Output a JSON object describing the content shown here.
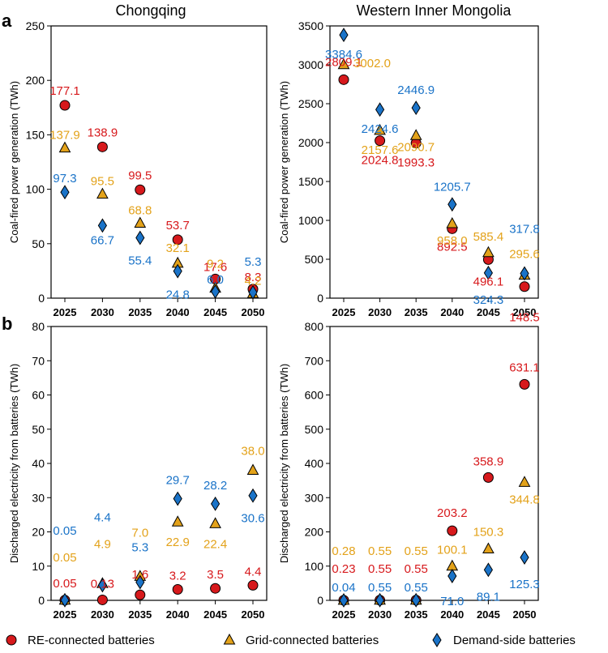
{
  "figure": {
    "panel_a": "a",
    "panel_b": "b",
    "col_titles": [
      "Chongqing",
      "Western Inner Mongolia"
    ]
  },
  "colors": {
    "re": "#d7191c",
    "grid": "#e3a21a",
    "demand": "#1a73c8",
    "red_label": "#d7191c",
    "gold_label": "#e3a21a",
    "blue_label": "#1a73c8"
  },
  "legend": {
    "items": [
      {
        "label": "RE-connected batteries",
        "marker": "circle",
        "color": "#d7191c"
      },
      {
        "label": "Grid-connected batteries",
        "marker": "triangle",
        "color": "#e3a21a"
      },
      {
        "label": "Demand-side batteries",
        "marker": "diamond",
        "color": "#1a73c8"
      }
    ]
  },
  "chart_data": [
    {
      "type": "scatter",
      "id": "a-chongqing",
      "title": "Chongqing",
      "xlabel": "",
      "ylabel": "Coal-fired power generation (TWh)",
      "categories": [
        "2025",
        "2030",
        "2035",
        "2040",
        "2045",
        "2050"
      ],
      "ylim": [
        0,
        250
      ],
      "yticks": [
        0,
        50,
        100,
        150,
        200,
        250
      ],
      "series": [
        {
          "name": "RE-connected batteries",
          "marker": "circle",
          "values": [
            177.1,
            138.9,
            99.5,
            53.7,
            17.6,
            8.3
          ]
        },
        {
          "name": "Grid-connected batteries",
          "marker": "triangle",
          "values": [
            137.9,
            95.5,
            68.8,
            32.1,
            9.2,
            4.2
          ]
        },
        {
          "name": "Demand-side batteries",
          "marker": "diamond",
          "values": [
            97.3,
            66.7,
            55.4,
            24.8,
            6.0,
            5.3
          ]
        }
      ]
    },
    {
      "type": "scatter",
      "id": "a-mongolia",
      "title": "Western Inner Mongolia",
      "xlabel": "",
      "ylabel": "Coal-fired power generation (TWh)",
      "categories": [
        "2025",
        "2030",
        "2035",
        "2040",
        "2045",
        "2050"
      ],
      "ylim": [
        0,
        3500
      ],
      "yticks": [
        0,
        500,
        1000,
        1500,
        2000,
        2500,
        3000,
        3500
      ],
      "series": [
        {
          "name": "RE-connected batteries",
          "marker": "circle",
          "values": [
            2809.1,
            2024.8,
            1993.3,
            892.5,
            496.1,
            148.5
          ]
        },
        {
          "name": "Grid-connected batteries",
          "marker": "triangle",
          "values": [
            3002.0,
            2157.6,
            2090.7,
            958.0,
            585.4,
            295.6
          ]
        },
        {
          "name": "Demand-side batteries",
          "marker": "diamond",
          "values": [
            3384.6,
            2424.6,
            2446.9,
            1205.7,
            324.3,
            317.8
          ]
        }
      ]
    },
    {
      "type": "scatter",
      "id": "b-chongqing",
      "title": "",
      "xlabel": "",
      "ylabel": "Discharged electricity from batteries (TWh)",
      "categories": [
        "2025",
        "2030",
        "2035",
        "2040",
        "2045",
        "2050"
      ],
      "ylim": [
        0,
        80
      ],
      "yticks": [
        0,
        10,
        20,
        30,
        40,
        50,
        60,
        70,
        80
      ],
      "series": [
        {
          "name": "RE-connected batteries",
          "marker": "circle",
          "values": [
            0.05,
            0.13,
            1.6,
            3.2,
            3.5,
            4.4
          ]
        },
        {
          "name": "Grid-connected batteries",
          "marker": "triangle",
          "values": [
            0.05,
            4.9,
            7.0,
            22.9,
            22.4,
            38.0
          ]
        },
        {
          "name": "Demand-side batteries",
          "marker": "diamond",
          "values": [
            0.05,
            4.4,
            5.3,
            29.7,
            28.2,
            30.6
          ]
        }
      ]
    },
    {
      "type": "scatter",
      "id": "b-mongolia",
      "title": "",
      "xlabel": "",
      "ylabel": "Discharged electricity from batteries (TWh)",
      "categories": [
        "2025",
        "2030",
        "2035",
        "2040",
        "2045",
        "2050"
      ],
      "ylim": [
        0,
        800
      ],
      "yticks": [
        0,
        100,
        200,
        300,
        400,
        500,
        600,
        700,
        800
      ],
      "series": [
        {
          "name": "RE-connected batteries",
          "marker": "circle",
          "values": [
            0.23,
            0.55,
            0.55,
            203.2,
            358.9,
            631.1
          ]
        },
        {
          "name": "Grid-connected batteries",
          "marker": "triangle",
          "values": [
            0.28,
            0.55,
            0.55,
            100.1,
            150.3,
            344.8
          ]
        },
        {
          "name": "Demand-side batteries",
          "marker": "diamond",
          "values": [
            0.04,
            0.55,
            0.55,
            71.0,
            89.1,
            125.3
          ]
        }
      ]
    }
  ]
}
